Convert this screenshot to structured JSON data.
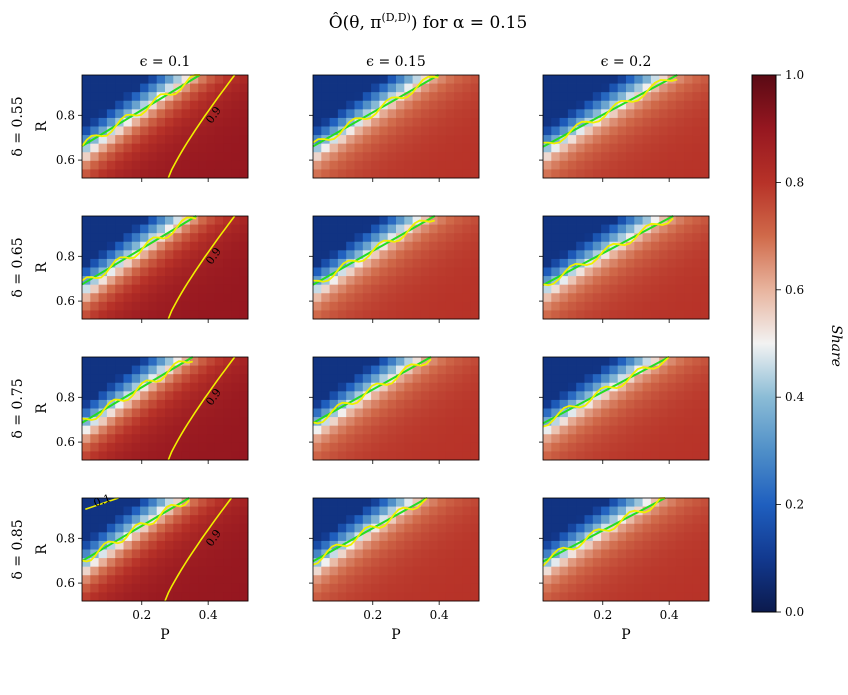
{
  "chart_data": {
    "type": "heatmap",
    "title": "Ô(θ, π^(D,D)) for α = 0.15",
    "title_main": "Ô(θ, π",
    "title_sup": "(D,D)",
    "title_tail": ") for α = 0.15",
    "xlabel": "P",
    "ylabel": "R",
    "x_ticks": [
      "0.2",
      "0.4"
    ],
    "y_ticks": [
      "0.6",
      "0.8"
    ],
    "x_range": [
      0.02,
      0.52
    ],
    "y_range": [
      0.52,
      0.98
    ],
    "grid": false,
    "column_labels": [
      "ϵ = 0.1",
      "ϵ = 0.15",
      "ϵ = 0.2"
    ],
    "row_labels": [
      "δ = 0.55",
      "δ = 0.65",
      "δ = 0.75",
      "δ = 0.85"
    ],
    "colorbar": {
      "label": "Share",
      "min": 0.0,
      "max": 1.0,
      "ticks": [
        "0.0",
        "0.2",
        "0.4",
        "0.6",
        "0.8",
        "1.0"
      ],
      "colormap": "blue-white-red (RdBu reversed)"
    },
    "contour_color": "#f0f000",
    "boundary_line_color": "#22dd22",
    "contour_labels": [
      "0.1",
      "0.9"
    ],
    "panels": [
      [
        {
          "row": 0,
          "col": 0,
          "contours": [
            "0.9"
          ]
        },
        {
          "row": 0,
          "col": 1,
          "contours": []
        },
        {
          "row": 0,
          "col": 2,
          "contours": []
        }
      ],
      [
        {
          "row": 1,
          "col": 0,
          "contours": [
            "0.9"
          ]
        },
        {
          "row": 1,
          "col": 1,
          "contours": []
        },
        {
          "row": 1,
          "col": 2,
          "contours": []
        }
      ],
      [
        {
          "row": 2,
          "col": 0,
          "contours": [
            "0.9"
          ]
        },
        {
          "row": 2,
          "col": 1,
          "contours": []
        },
        {
          "row": 2,
          "col": 2,
          "contours": []
        }
      ],
      [
        {
          "row": 3,
          "col": 0,
          "contours": [
            "0.1",
            "0.9"
          ]
        },
        {
          "row": 3,
          "col": 1,
          "contours": []
        },
        {
          "row": 3,
          "col": 2,
          "contours": []
        }
      ]
    ]
  }
}
